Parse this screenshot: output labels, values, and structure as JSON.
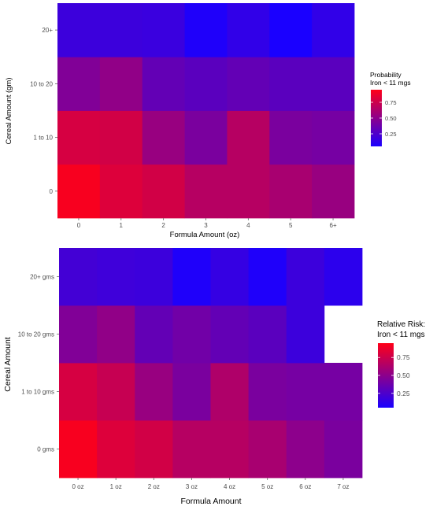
{
  "chart_data": [
    {
      "type": "heatmap",
      "xlabel": "Formula Amount (oz)",
      "ylabel": "Cereal Amount (gm)",
      "x_categories": [
        "0",
        "1",
        "2",
        "3",
        "4",
        "5",
        "6+"
      ],
      "y_categories": [
        "0",
        "1 to 10",
        "10 to 20",
        "20+"
      ],
      "values": [
        [
          0.97,
          0.85,
          0.8,
          0.68,
          0.68,
          0.62,
          0.55
        ],
        [
          0.82,
          0.8,
          0.55,
          0.42,
          0.68,
          0.42,
          0.4
        ],
        [
          0.45,
          0.52,
          0.32,
          0.28,
          0.32,
          0.28,
          0.28
        ],
        [
          0.15,
          0.15,
          0.14,
          0.02,
          0.1,
          0.0,
          0.1
        ]
      ],
      "legend": {
        "title_line1": "Probability",
        "title_line2": "Iron < 11 mgs",
        "ticks": [
          "0.75",
          "0.50",
          "0.25"
        ],
        "tick_values": [
          0.75,
          0.5,
          0.25
        ],
        "range": [
          0.05,
          0.95
        ],
        "position": "right"
      },
      "low_color": "#1a00ff",
      "high_color": "#ff0018"
    },
    {
      "type": "heatmap",
      "xlabel": "Formula Amount",
      "ylabel": "Cereal Amount",
      "x_categories": [
        "0 oz",
        "1 oz",
        "2 oz",
        "3 oz",
        "4 oz",
        "5 oz",
        "6 oz",
        "7 oz"
      ],
      "y_categories": [
        "0 gms",
        "1 to 10 gms",
        "10 to 20 gms",
        "20+ gms"
      ],
      "values": [
        [
          0.97,
          0.85,
          0.8,
          0.68,
          0.68,
          0.62,
          0.5,
          0.42
        ],
        [
          0.82,
          0.75,
          0.55,
          0.42,
          0.65,
          0.42,
          0.4,
          0.4
        ],
        [
          0.45,
          0.52,
          0.32,
          0.38,
          0.32,
          0.28,
          0.15,
          null
        ],
        [
          0.18,
          0.16,
          0.15,
          0.02,
          0.12,
          0.02,
          0.15,
          0.08
        ]
      ],
      "legend": {
        "title_line1": "Relative Risk:",
        "title_line2": "Iron < 11 mgs",
        "ticks": [
          "0.75",
          "0.50",
          "0.25"
        ],
        "tick_values": [
          0.75,
          0.5,
          0.25
        ],
        "range": [
          0.05,
          0.95
        ],
        "position": "right"
      },
      "low_color": "#1a00ff",
      "high_color": "#ff0018"
    }
  ]
}
